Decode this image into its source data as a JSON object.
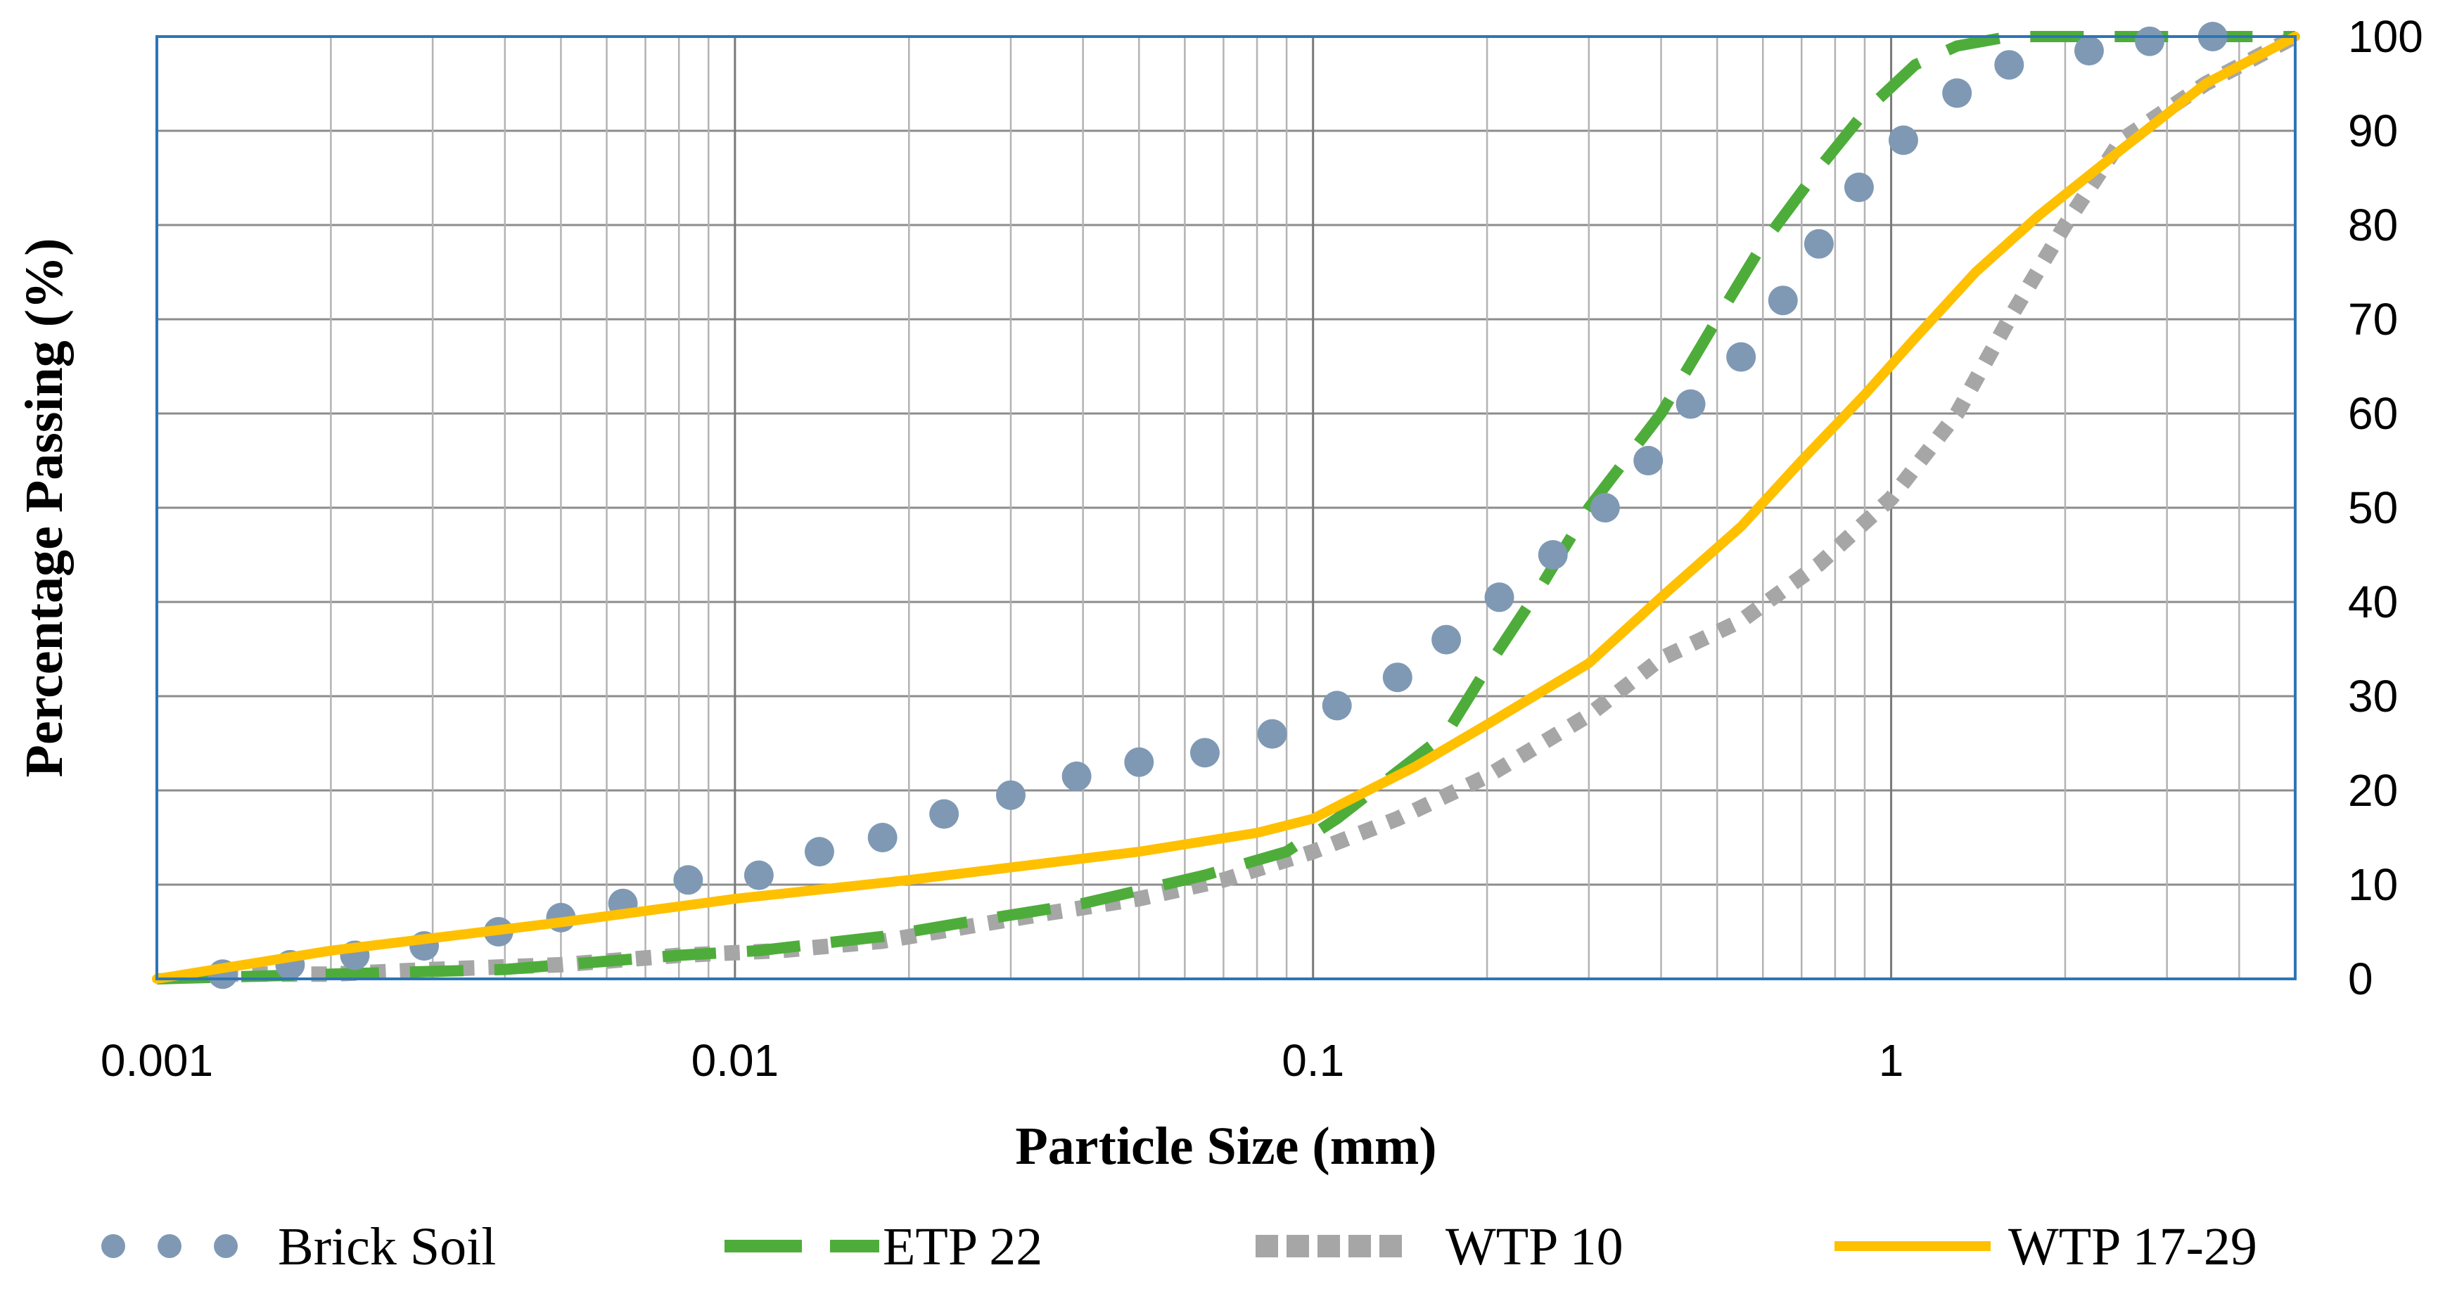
{
  "chart_data": {
    "type": "line",
    "title": "",
    "xlabel": "Particle Size (mm)",
    "ylabel": "Percentage Passing (%)",
    "x_scale": "log",
    "xlim": [
      0.001,
      5
    ],
    "ylim": [
      0,
      100
    ],
    "grid": true,
    "y_axis_side": "right",
    "x_tick_labels": [
      "0.001",
      "0.01",
      "0.1",
      "1"
    ],
    "x_tick_values": [
      0.001,
      0.01,
      0.1,
      1
    ],
    "y_tick_labels": [
      "0",
      "10",
      "20",
      "30",
      "40",
      "50",
      "60",
      "70",
      "80",
      "90",
      "100"
    ],
    "y_tick_values": [
      0,
      10,
      20,
      30,
      40,
      50,
      60,
      70,
      80,
      90,
      100
    ],
    "legend_position": "bottom",
    "series": [
      {
        "name": "Brick Soil",
        "style": "dots",
        "color": "#7f99b4",
        "x": [
          0.0013,
          0.0017,
          0.0022,
          0.0029,
          0.0039,
          0.005,
          0.0064,
          0.0083,
          0.011,
          0.014,
          0.018,
          0.023,
          0.03,
          0.039,
          0.05,
          0.065,
          0.085,
          0.11,
          0.14,
          0.17,
          0.21,
          0.26,
          0.32,
          0.38,
          0.45,
          0.55,
          0.65,
          0.75,
          0.88,
          1.05,
          1.3,
          1.6,
          2.2,
          2.8,
          3.6
        ],
        "y": [
          0.5,
          1.5,
          2.5,
          3.5,
          5,
          6.5,
          8,
          10.5,
          11,
          13.5,
          15,
          17.5,
          19.5,
          21.5,
          23,
          24,
          26,
          29,
          32,
          36,
          40.5,
          45,
          50,
          55,
          61,
          66,
          72,
          78,
          84,
          89,
          94,
          97,
          98.5,
          99.5,
          100
        ]
      },
      {
        "name": "ETP 22",
        "style": "long-dash",
        "color": "#4ead3a",
        "x": [
          0.001,
          0.002,
          0.004,
          0.008,
          0.011,
          0.018,
          0.025,
          0.04,
          0.065,
          0.09,
          0.11,
          0.14,
          0.17,
          0.2,
          0.25,
          0.3,
          0.4,
          0.5,
          0.6,
          0.75,
          0.9,
          1.1,
          1.3,
          1.6,
          2.5,
          5
        ],
        "y": [
          0,
          0.5,
          1,
          2.5,
          3,
          4.5,
          6,
          8,
          11,
          13.5,
          17,
          22,
          26,
          33,
          42,
          50,
          60,
          70,
          78,
          86,
          92,
          97,
          99,
          100,
          100,
          100
        ]
      },
      {
        "name": "WTP 10",
        "style": "square-dots",
        "color": "#a6a6a6",
        "x": [
          0.0013,
          0.002,
          0.003,
          0.005,
          0.008,
          0.012,
          0.018,
          0.025,
          0.035,
          0.05,
          0.07,
          0.1,
          0.14,
          0.2,
          0.3,
          0.4,
          0.55,
          0.75,
          1,
          1.3,
          1.6,
          2,
          2.5,
          3.5,
          5
        ],
        "y": [
          0.5,
          0.5,
          1,
          1.5,
          2.5,
          3,
          4,
          5.5,
          7,
          8.5,
          10.5,
          13.5,
          17,
          21.5,
          28,
          34,
          38,
          44,
          51,
          60,
          70,
          80,
          89,
          95,
          100
        ]
      },
      {
        "name": "WTP 17-29",
        "style": "solid",
        "color": "#ffc000",
        "x": [
          0.001,
          0.002,
          0.005,
          0.01,
          0.02,
          0.05,
          0.08,
          0.1,
          0.12,
          0.15,
          0.2,
          0.3,
          0.4,
          0.55,
          0.7,
          0.9,
          1.1,
          1.4,
          1.8,
          2.5,
          3.5,
          5
        ],
        "y": [
          0,
          3,
          6,
          8.5,
          10.5,
          13.5,
          15.5,
          17,
          19.5,
          22.5,
          27,
          33.5,
          40.5,
          48,
          55,
          62,
          68,
          75,
          81,
          88,
          95,
          100
        ]
      }
    ]
  }
}
